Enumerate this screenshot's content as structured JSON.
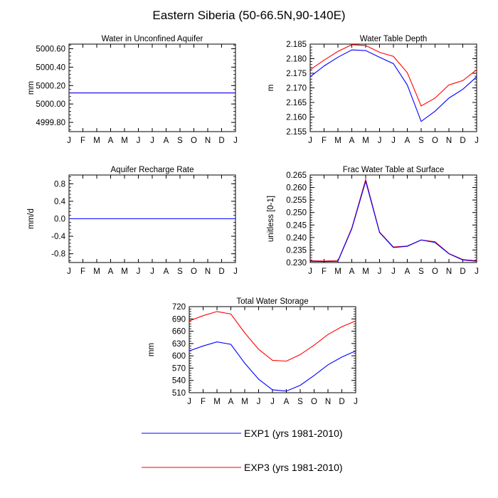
{
  "figure": {
    "title": "Eastern Siberia (50-66.5N,90-140E)"
  },
  "legend": {
    "items": [
      {
        "label": "EXP1 (yrs 1981-2010)",
        "color": "#0000ff"
      },
      {
        "label": "EXP3 (yrs 1981-2010)",
        "color": "#ff0000"
      }
    ]
  },
  "chart_data": [
    {
      "type": "line",
      "title": "Water in Unconfined Aquifer",
      "xlabel": "",
      "ylabel": "mm",
      "categories": [
        "J",
        "F",
        "M",
        "A",
        "M",
        "J",
        "J",
        "A",
        "S",
        "O",
        "N",
        "D",
        "J"
      ],
      "ylim": [
        4999.7,
        5000.65
      ],
      "yticks": [
        4999.8,
        5000.0,
        5000.2,
        5000.4,
        5000.6
      ],
      "ytick_labels": [
        "4999.80",
        "5000.00",
        "5000.20",
        "5000.40",
        "5000.60"
      ],
      "series": [
        {
          "name": "EXP1 (yrs 1981-2010)",
          "color": "#0000ff",
          "values": [
            5000.12,
            5000.12,
            5000.12,
            5000.12,
            5000.12,
            5000.12,
            5000.12,
            5000.12,
            5000.12,
            5000.12,
            5000.12,
            5000.12,
            5000.12
          ]
        },
        {
          "name": "EXP3 (yrs 1981-2010)",
          "color": "#ff0000",
          "values": [
            5000.12,
            5000.12,
            5000.12,
            5000.12,
            5000.12,
            5000.12,
            5000.12,
            5000.12,
            5000.12,
            5000.12,
            5000.12,
            5000.12,
            5000.12
          ]
        }
      ]
    },
    {
      "type": "line",
      "title": "Water Table Depth",
      "xlabel": "",
      "ylabel": "m",
      "categories": [
        "J",
        "F",
        "M",
        "A",
        "M",
        "J",
        "J",
        "A",
        "S",
        "O",
        "N",
        "D",
        "J"
      ],
      "ylim": [
        2.155,
        2.185
      ],
      "yticks": [
        2.155,
        2.16,
        2.165,
        2.17,
        2.175,
        2.18,
        2.185
      ],
      "ytick_labels": [
        "2.155",
        "2.160",
        "2.165",
        "2.170",
        "2.175",
        "2.180",
        "2.185"
      ],
      "series": [
        {
          "name": "EXP1 (yrs 1981-2010)",
          "color": "#0000ff",
          "values": [
            2.1738,
            2.1775,
            2.1805,
            2.183,
            2.1828,
            2.1805,
            2.1783,
            2.171,
            2.1585,
            2.162,
            2.1665,
            2.1695,
            2.1738
          ]
        },
        {
          "name": "EXP3 (yrs 1981-2010)",
          "color": "#ff0000",
          "values": [
            2.1762,
            2.1795,
            2.1825,
            2.1848,
            2.1845,
            2.1822,
            2.1808,
            2.1752,
            2.1638,
            2.1665,
            2.171,
            2.1725,
            2.1762
          ]
        }
      ]
    },
    {
      "type": "line",
      "title": "Aquifer Recharge Rate",
      "xlabel": "",
      "ylabel": "mm/d",
      "categories": [
        "J",
        "F",
        "M",
        "A",
        "M",
        "J",
        "J",
        "A",
        "S",
        "O",
        "N",
        "D",
        "J"
      ],
      "ylim": [
        -1.0,
        1.0
      ],
      "yticks": [
        -0.8,
        -0.4,
        0.0,
        0.4,
        0.8
      ],
      "ytick_labels": [
        "-0.8",
        "-0.4",
        "0.0",
        "0.4",
        "0.8"
      ],
      "series": [
        {
          "name": "EXP1 (yrs 1981-2010)",
          "color": "#0000ff",
          "values": [
            0,
            0,
            0,
            0,
            0,
            0,
            0,
            0,
            0,
            0,
            0,
            0,
            0
          ]
        },
        {
          "name": "EXP3 (yrs 1981-2010)",
          "color": "#ff0000",
          "values": [
            0,
            0,
            0,
            0,
            0,
            0,
            0,
            0,
            0,
            0,
            0,
            0,
            0
          ]
        }
      ]
    },
    {
      "type": "line",
      "title": "Frac Water Table at Surface",
      "xlabel": "",
      "ylabel": "unitless [0-1]",
      "categories": [
        "J",
        "F",
        "M",
        "A",
        "M",
        "J",
        "J",
        "A",
        "S",
        "O",
        "N",
        "D",
        "J"
      ],
      "ylim": [
        0.23,
        0.265
      ],
      "yticks": [
        0.23,
        0.235,
        0.24,
        0.245,
        0.25,
        0.255,
        0.26,
        0.265
      ],
      "ytick_labels": [
        "0.230",
        "0.235",
        "0.240",
        "0.245",
        "0.250",
        "0.255",
        "0.260",
        "0.265"
      ],
      "series": [
        {
          "name": "EXP1 (yrs 1981-2010)",
          "color": "#0000ff",
          "values": [
            0.2305,
            0.2304,
            0.2305,
            0.2435,
            0.2625,
            0.242,
            0.236,
            0.2365,
            0.239,
            0.238,
            0.2335,
            0.231,
            0.2305
          ]
        },
        {
          "name": "EXP3 (yrs 1981-2010)",
          "color": "#ff0000",
          "values": [
            0.2307,
            0.2306,
            0.2307,
            0.2438,
            0.2632,
            0.2422,
            0.2362,
            0.2366,
            0.239,
            0.2383,
            0.2336,
            0.2312,
            0.2307
          ]
        }
      ]
    },
    {
      "type": "line",
      "title": "Total Water Storage",
      "xlabel": "",
      "ylabel": "mm",
      "categories": [
        "J",
        "F",
        "M",
        "A",
        "M",
        "J",
        "J",
        "A",
        "S",
        "O",
        "N",
        "D",
        "J"
      ],
      "ylim": [
        510,
        720
      ],
      "yticks": [
        510,
        540,
        570,
        600,
        630,
        660,
        690,
        720
      ],
      "ytick_labels": [
        "510",
        "540",
        "570",
        "600",
        "630",
        "660",
        "690",
        "720"
      ],
      "series": [
        {
          "name": "EXP1 (yrs 1981-2010)",
          "color": "#0000ff",
          "values": [
            612,
            624,
            634,
            628,
            582,
            543,
            517,
            514,
            528,
            552,
            578,
            597,
            612
          ]
        },
        {
          "name": "EXP3 (yrs 1981-2010)",
          "color": "#ff0000",
          "values": [
            685,
            698,
            708,
            702,
            656,
            616,
            589,
            587,
            603,
            626,
            652,
            671,
            685
          ]
        }
      ]
    }
  ]
}
